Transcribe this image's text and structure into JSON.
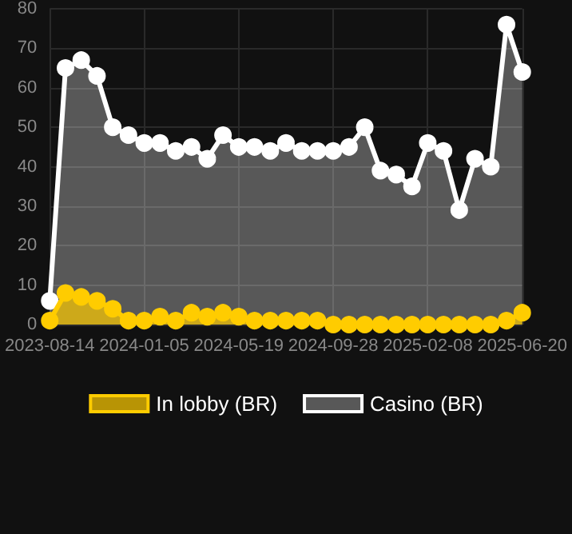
{
  "chart_data": {
    "type": "area",
    "categories": [
      "2023-08-14",
      null,
      null,
      null,
      null,
      null,
      "2024-01-05",
      null,
      null,
      null,
      null,
      null,
      "2024-05-19",
      null,
      null,
      null,
      null,
      null,
      "2024-09-28",
      null,
      null,
      null,
      null,
      null,
      "2025-02-08",
      null,
      null,
      null,
      null,
      null,
      "2025-06-20"
    ],
    "series": [
      {
        "name": "In lobby (BR)",
        "color": "#ffcc00",
        "values": [
          1,
          8,
          7,
          6,
          4,
          1,
          1,
          2,
          1,
          3,
          2,
          3,
          2,
          1,
          1,
          1,
          1,
          1,
          0,
          0,
          0,
          0,
          0,
          0,
          0,
          0,
          0,
          0,
          0,
          1,
          3
        ]
      },
      {
        "name": "Casino (BR)",
        "color": "#ffffff",
        "values": [
          6,
          65,
          67,
          63,
          50,
          48,
          46,
          46,
          44,
          45,
          42,
          48,
          45,
          45,
          44,
          46,
          44,
          44,
          44,
          45,
          50,
          39,
          38,
          35,
          46,
          44,
          29,
          42,
          40,
          76,
          64
        ]
      }
    ],
    "ylim": [
      0,
      80
    ],
    "yticks": [
      0,
      10,
      20,
      30,
      40,
      50,
      60,
      70,
      80
    ],
    "grid": true,
    "legend": "bottom",
    "marker": "circle"
  }
}
